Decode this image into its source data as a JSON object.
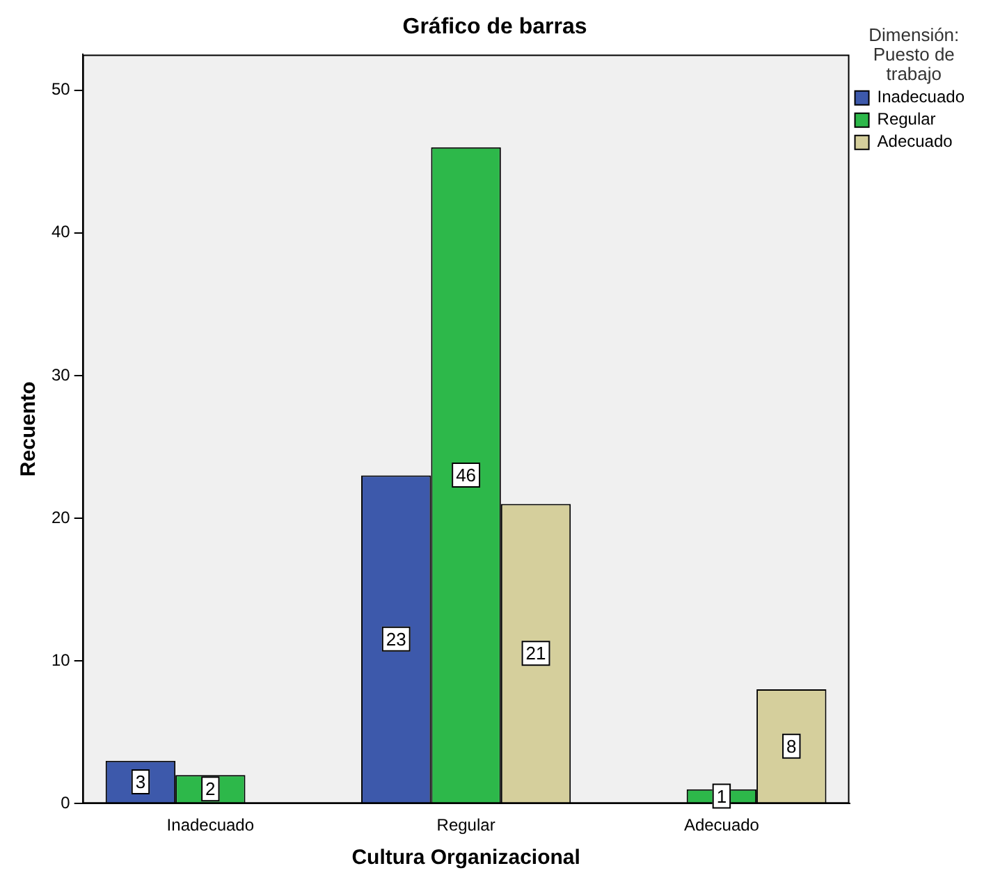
{
  "chart_data": {
    "type": "bar",
    "title": "Gráfico de barras",
    "xlabel": "Cultura Organizacional",
    "ylabel": "Recuento",
    "legend_title": "Dimensión: Puesto de trabajo",
    "categories": [
      "Inadecuado",
      "Regular",
      "Adecuado"
    ],
    "series": [
      {
        "name": "Inadecuado",
        "color": "#3d59ab",
        "values": [
          3,
          23,
          null
        ]
      },
      {
        "name": "Regular",
        "color": "#2db84a",
        "values": [
          2,
          46,
          1
        ]
      },
      {
        "name": "Adecuado",
        "color": "#d5cf9c",
        "values": [
          null,
          21,
          8
        ]
      }
    ],
    "ylim": [
      0,
      52.5
    ],
    "yticks": [
      0,
      10,
      20,
      30,
      40,
      50
    ],
    "grid": false,
    "legend": "right",
    "data_labels": true
  }
}
